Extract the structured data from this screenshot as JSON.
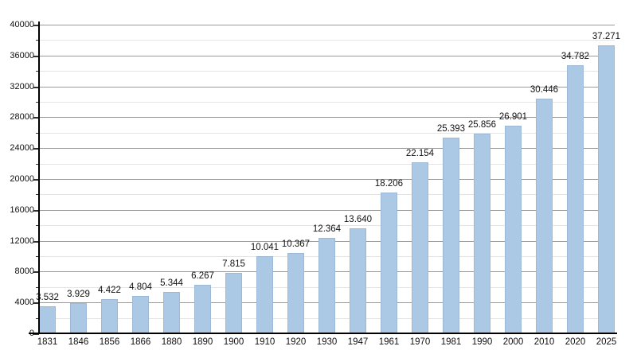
{
  "chart_data": {
    "type": "bar",
    "title": "",
    "xlabel": "",
    "ylabel": "",
    "categories": [
      "1831",
      "1846",
      "1856",
      "1866",
      "1880",
      "1890",
      "1900",
      "1910",
      "1920",
      "1930",
      "1947",
      "1961",
      "1970",
      "1981",
      "1990",
      "2000",
      "2010",
      "2020",
      "2025"
    ],
    "values": [
      3532,
      3929,
      4422,
      4804,
      5344,
      6267,
      7815,
      10041,
      10367,
      12364,
      13640,
      18206,
      22154,
      25393,
      25856,
      26901,
      30446,
      34782,
      37271
    ],
    "value_labels": [
      "3.532",
      "3.929",
      "4.422",
      "4.804",
      "5.344",
      "6.267",
      "7.815",
      "10.041",
      "10.367",
      "12.364",
      "13.640",
      "18.206",
      "22.154",
      "25.393",
      "25.856",
      "26.901",
      "30.446",
      "34.782",
      "37.271"
    ],
    "ylim": [
      0,
      40000
    ],
    "ytick_major": 4000,
    "ytick_minor": 2000,
    "ytick_labels": [
      "0",
      "4000",
      "8000",
      "12000",
      "16000",
      "20000",
      "24000",
      "28000",
      "32000",
      "36000",
      "40000"
    ],
    "grid": true,
    "legend": false,
    "colors": {
      "bar_fill": "#abc8e4",
      "bar_border": "#9db9d6",
      "grid_major": "#9a9a9a",
      "grid_minor": "#e4e4e4",
      "axis": "#000000",
      "text": "#111111",
      "background": "#ffffff"
    }
  }
}
